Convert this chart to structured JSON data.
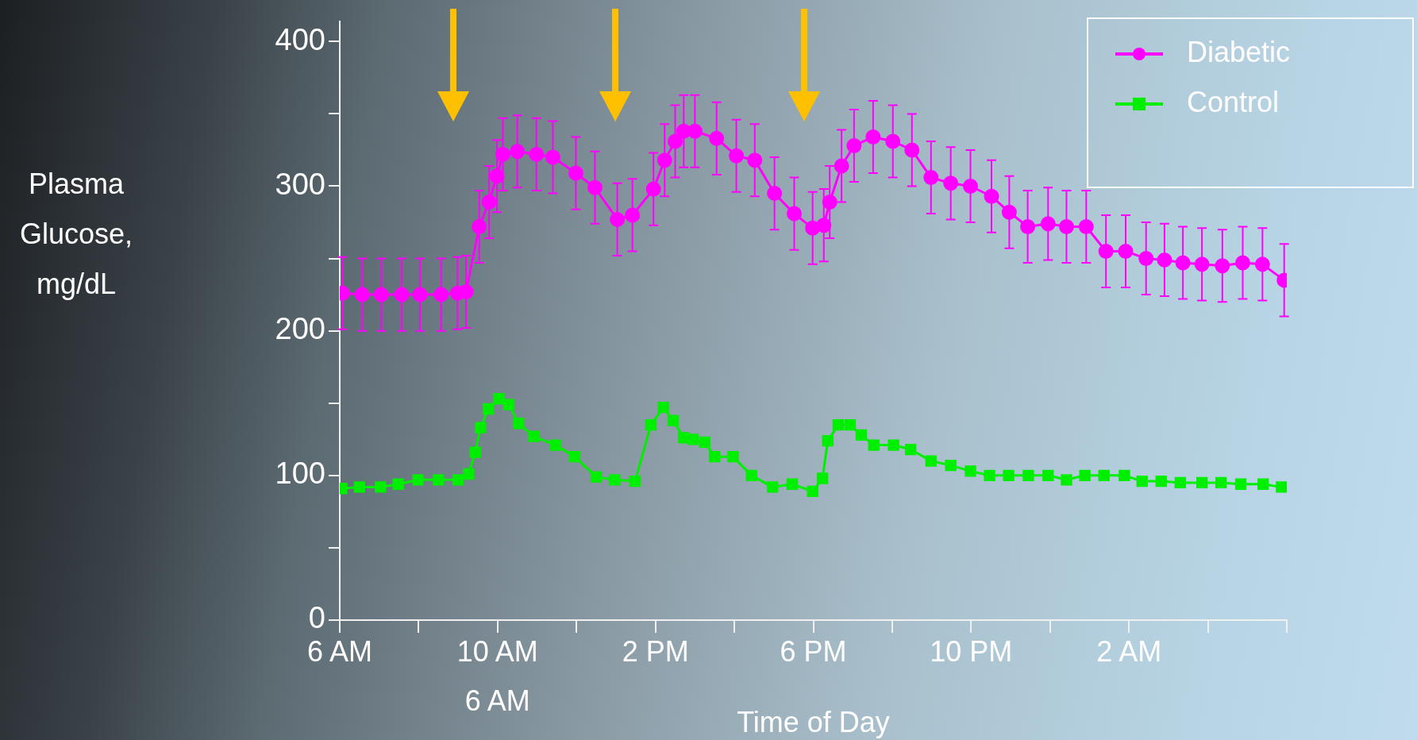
{
  "chart_data": {
    "type": "line",
    "ylabel": "Plasma Glucose, mg/dL",
    "xlabel": "Time of Day",
    "xlim": [
      "--01-01T06:00",
      "--01-02T06:00"
    ],
    "xticks": [
      {
        "value": "--01-01T06:00",
        "label": "6 AM"
      },
      {
        "value": "--01-01T08:00",
        "label": null
      },
      {
        "value": "--01-01T10:00",
        "label": "10 AM"
      },
      {
        "value": "--01-01T12:00",
        "label": null
      },
      {
        "value": "--01-01T14:00",
        "label": "2 PM"
      },
      {
        "value": "--01-01T16:00",
        "label": null
      },
      {
        "value": "--01-01T18:00",
        "label": "6 PM"
      },
      {
        "value": "--01-01T20:00",
        "label": null
      },
      {
        "value": "--01-01T22:00",
        "label": "10 PM"
      },
      {
        "value": "--01-02T00:00",
        "label": null
      },
      {
        "value": "--01-02T02:00",
        "label": "2 AM"
      },
      {
        "value": "--01-02T04:00",
        "label": null
      },
      {
        "value": "--01-02T06:00",
        "label": null
      }
    ],
    "ylim": [
      0,
      414
    ],
    "yticks": [
      0,
      {
        "value": 50,
        "label": null
      },
      100,
      {
        "value": 150,
        "label": null
      },
      200,
      {
        "value": 250,
        "label": null
      },
      300,
      {
        "value": 350,
        "label": null
      },
      400
    ],
    "grid": false,
    "legend": "top right",
    "annotations": [
      "6 AM"
    ],
    "series": [
      {
        "name": "Diabetic",
        "color": "#ff00ff",
        "marker": "circle",
        "x": [
          "--01-01T06:04",
          "--01-01T06:34",
          "--01-01T07:03",
          "--01-01T07:34",
          "--01-01T08:02",
          "--01-01T08:34",
          "--01-01T08:59",
          "--01-01T09:12",
          "--01-01T09:32",
          "--01-01T09:47",
          "--01-01T09:59",
          "--01-01T10:08",
          "--01-01T10:30",
          "--01-01T10:59",
          "--01-01T11:24",
          "--01-01T11:59",
          "--01-01T12:28",
          "--01-01T13:02",
          "--01-01T13:25",
          "--01-01T13:57",
          "--01-01T14:14",
          "--01-01T14:30",
          "--01-01T14:43",
          "--01-01T15:00",
          "--01-01T15:33",
          "--01-01T16:03",
          "--01-01T16:31",
          "--01-01T17:01",
          "--01-01T17:31",
          "--01-01T17:59",
          "--01-01T18:16",
          "--01-01T18:25",
          "--01-01T18:43",
          "--01-01T19:02",
          "--01-01T19:31",
          "--01-01T20:01",
          "--01-01T20:30",
          "--01-01T20:59",
          "--01-01T21:29",
          "--01-01T21:59",
          "--01-01T22:31",
          "--01-01T22:58",
          "--01-01T23:26",
          "--01-01T23:57",
          "--01-02T00:25",
          "--01-02T00:55",
          "--01-02T01:25",
          "--01-02T01:55",
          "--01-02T02:26",
          "--01-02T02:54",
          "--01-02T03:22",
          "--01-02T03:51",
          "--01-02T04:22",
          "--01-02T04:53",
          "--01-02T05:23",
          "--01-02T05:56"
        ],
        "values": [
          226,
          225,
          225,
          225,
          225,
          225,
          226,
          227,
          272,
          289,
          307,
          322,
          324,
          322,
          320,
          309,
          299,
          277,
          280,
          298,
          318,
          331,
          338,
          338,
          333,
          321,
          318,
          295,
          281,
          271,
          273,
          289,
          314,
          328,
          334,
          331,
          325,
          306,
          302,
          300,
          293,
          282,
          272,
          274,
          272,
          272,
          255,
          255,
          250,
          249,
          247,
          246,
          245,
          247,
          246,
          235
        ],
        "errors": [
          25,
          25,
          25,
          25,
          25,
          25,
          25,
          25,
          25,
          25,
          25,
          25,
          25,
          25,
          25,
          25,
          25,
          25,
          25,
          25,
          25,
          25,
          25,
          25,
          25,
          25,
          25,
          25,
          25,
          25,
          25,
          25,
          25,
          25,
          25,
          25,
          25,
          25,
          25,
          25,
          25,
          25,
          25,
          25,
          25,
          25,
          25,
          25,
          25,
          25,
          25,
          25,
          25,
          25,
          25,
          25
        ]
      },
      {
        "name": "Control",
        "color": "#00ee00",
        "marker": "square",
        "x": [
          "--01-01T06:03",
          "--01-01T06:30",
          "--01-01T07:02",
          "--01-01T07:29",
          "--01-01T07:59",
          "--01-01T08:30",
          "--01-01T09:00",
          "--01-01T09:16",
          "--01-01T09:26",
          "--01-01T09:34",
          "--01-01T09:46",
          "--01-01T10:02",
          "--01-01T10:17",
          "--01-01T10:32",
          "--01-01T10:55",
          "--01-01T11:28",
          "--01-01T11:57",
          "--01-01T12:30",
          "--01-01T12:58",
          "--01-01T13:29",
          "--01-01T13:53",
          "--01-01T14:12",
          "--01-01T14:27",
          "--01-01T14:43",
          "--01-01T14:57",
          "--01-01T15:15",
          "--01-01T15:30",
          "--01-01T15:58",
          "--01-01T16:26",
          "--01-01T16:58",
          "--01-01T17:28",
          "--01-01T17:59",
          "--01-01T18:14",
          "--01-01T18:22",
          "--01-01T18:38",
          "--01-01T18:56",
          "--01-01T19:13",
          "--01-01T19:32",
          "--01-01T20:02",
          "--01-01T20:28",
          "--01-01T20:59",
          "--01-01T21:29",
          "--01-01T21:59",
          "--01-01T22:28",
          "--01-01T22:57",
          "--01-01T23:27",
          "--01-01T23:57",
          "--01-02T00:25",
          "--01-02T00:53",
          "--01-02T01:22",
          "--01-02T01:53",
          "--01-02T02:20",
          "--01-02T02:49",
          "--01-02T03:18",
          "--01-02T03:51",
          "--01-02T04:20",
          "--01-02T04:50",
          "--01-02T05:24",
          "--01-02T05:52"
        ],
        "values": [
          91,
          92,
          92,
          94,
          97,
          97,
          97,
          101,
          116,
          133,
          146,
          153,
          149,
          136,
          127,
          121,
          113,
          99,
          97,
          96,
          135,
          147,
          138,
          126,
          125,
          123,
          113,
          113,
          100,
          92,
          94,
          89,
          98,
          124,
          135,
          135,
          128,
          121,
          121,
          118,
          110,
          107,
          103,
          100,
          100,
          100,
          100,
          97,
          100,
          100,
          100,
          96,
          96,
          95,
          95,
          95,
          94,
          94,
          92
        ]
      }
    ]
  }
}
